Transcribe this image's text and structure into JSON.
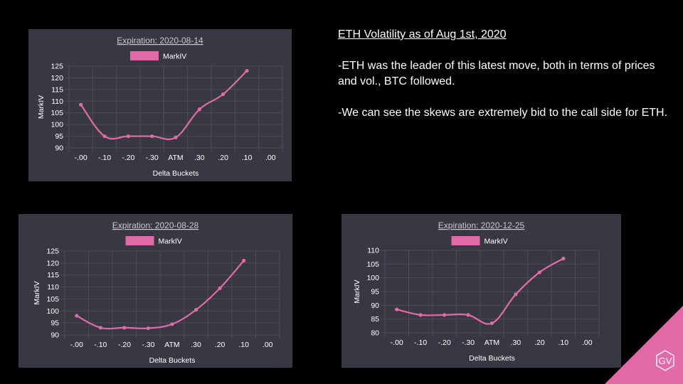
{
  "notes": {
    "heading": "ETH Volatility as of Aug 1st, 2020",
    "paragraphs": [
      "-ETH was the leader of this latest move, both in terms of prices and vol., BTC followed.",
      "-We can see the skews are extremely bid to the call side for ETH."
    ]
  },
  "logo": {
    "text": "GV",
    "color": "#e26aa6"
  },
  "colors": {
    "line": "#e26aa6",
    "title": "#c9c9d6",
    "text": "#ffffff",
    "grid": "#4b4b56",
    "panel": "#383842"
  },
  "chart_data": [
    {
      "type": "line",
      "title": "Expiration: 2020-08-14",
      "xlabel": "Delta Buckets",
      "ylabel": "MarkIV",
      "categories": [
        "-.00",
        "-.10",
        "-.20",
        "-.30",
        "ATM",
        ".30",
        ".20",
        ".10",
        ".00"
      ],
      "series": [
        {
          "name": "MarkIV",
          "values": [
            108.5,
            95,
            95,
            95,
            94.5,
            106.5,
            113,
            123,
            null
          ]
        }
      ],
      "ylim": [
        90,
        125
      ],
      "yticks": [
        90,
        95,
        100,
        105,
        110,
        115,
        120,
        125
      ],
      "grid": true,
      "legend": "top-center"
    },
    {
      "type": "line",
      "title": "Expiration: 2020-08-28",
      "xlabel": "Delta Buckets",
      "ylabel": "MarkIV",
      "categories": [
        "-.00",
        "-.10",
        "-.20",
        "-.30",
        "ATM",
        ".30",
        ".20",
        ".10",
        ".00"
      ],
      "series": [
        {
          "name": "MarkIV",
          "values": [
            98,
            93,
            93,
            92.8,
            94.5,
            100.5,
            109.5,
            121,
            null
          ]
        }
      ],
      "ylim": [
        90,
        125
      ],
      "yticks": [
        90,
        95,
        100,
        105,
        110,
        115,
        120,
        125
      ],
      "grid": true,
      "legend": "top-center"
    },
    {
      "type": "line",
      "title": "Expiration: 2020-12-25",
      "xlabel": "Delta Buckets",
      "ylabel": "MarkIV",
      "categories": [
        "-.00",
        "-.10",
        "-.20",
        "-.30",
        "ATM",
        ".30",
        ".20",
        ".10",
        ".00"
      ],
      "series": [
        {
          "name": "MarkIV",
          "values": [
            88.5,
            86.5,
            86.5,
            86.5,
            83.5,
            94,
            102,
            107,
            null
          ]
        }
      ],
      "ylim": [
        80,
        110
      ],
      "yticks": [
        80,
        85,
        90,
        95,
        100,
        105,
        110
      ],
      "grid": true,
      "legend": "top-center"
    }
  ]
}
